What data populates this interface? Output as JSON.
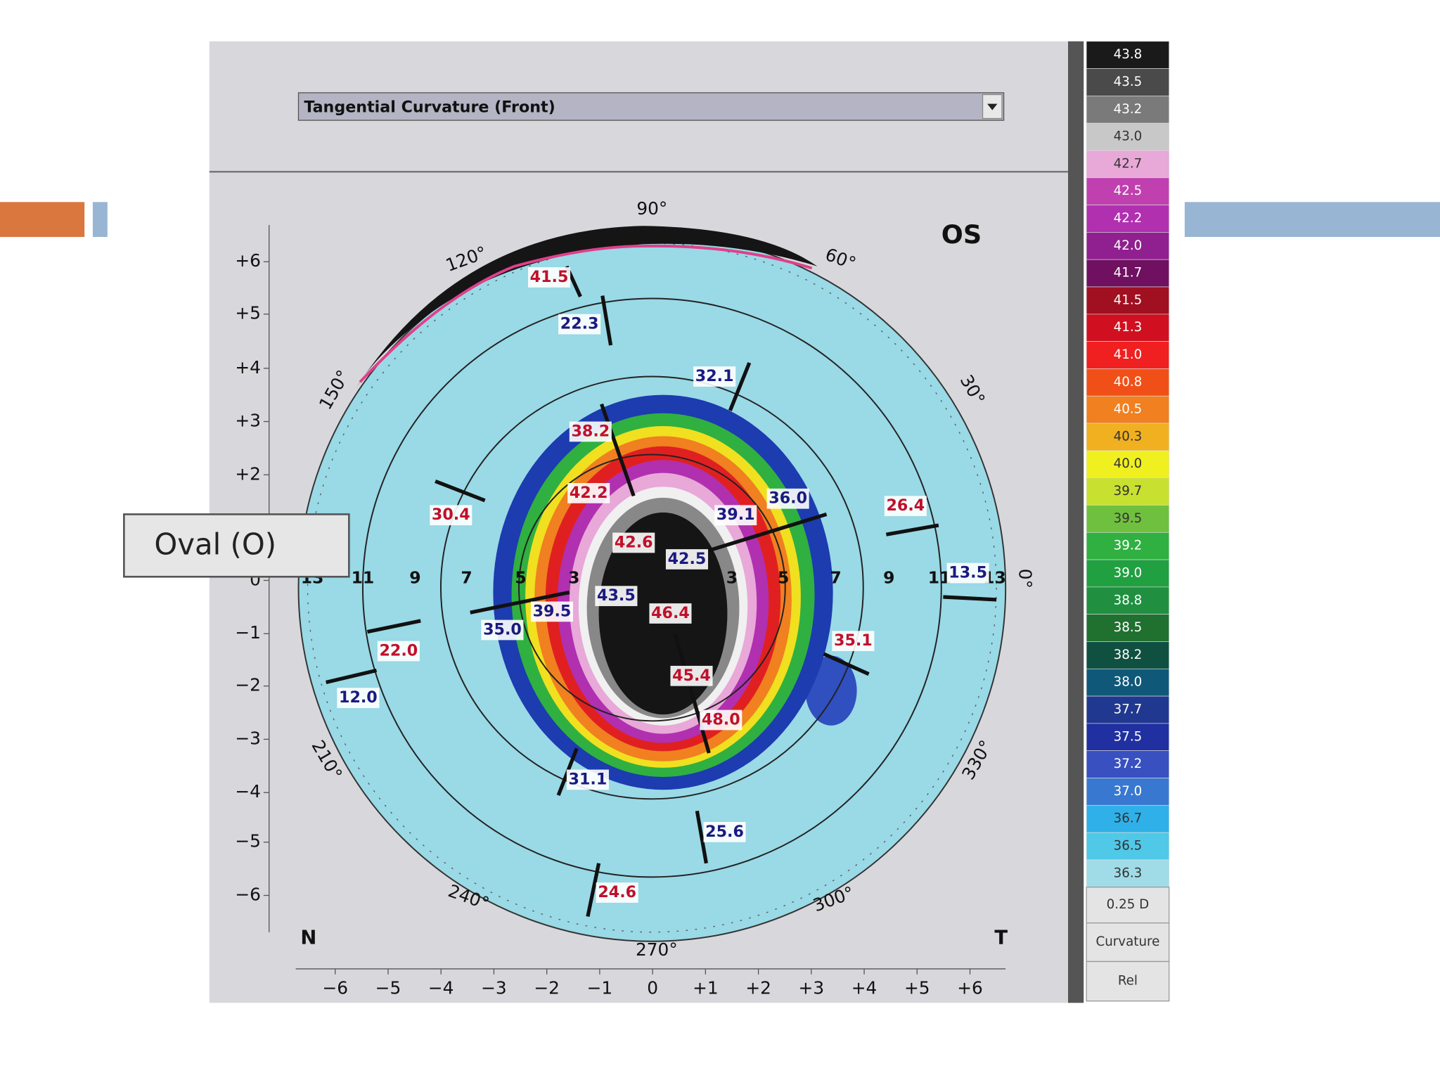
{
  "slide": {
    "callout": "Oval (O)"
  },
  "map": {
    "dropdown": "Tangential Curvature (Front)",
    "eye": "OS",
    "nasal": "N",
    "temporal": "T",
    "angles": [
      "90°",
      "60°",
      "30°",
      "0°",
      "330°",
      "300°",
      "270°",
      "240°",
      "210°",
      "150°",
      "120°"
    ],
    "y_ticks": [
      "+6",
      "+5",
      "+4",
      "+3",
      "+2",
      "0",
      "−1",
      "−2",
      "−3",
      "−4",
      "−5",
      "−6"
    ],
    "x_ticks": [
      "−6",
      "−5",
      "−4",
      "−3",
      "−2",
      "−1",
      "0",
      "+1",
      "+2",
      "+3",
      "+4",
      "+5",
      "+6"
    ],
    "ring_numbers": [
      "13",
      "11",
      "9",
      "7",
      "5",
      "3",
      "3",
      "5",
      "7",
      "9",
      "11",
      "13"
    ],
    "readings": [
      "41.5",
      "22.3",
      "32.1",
      "38.2",
      "42.2",
      "30.4",
      "36.0",
      "39.1",
      "26.4",
      "42.6",
      "42.5",
      "43.5",
      "39.5",
      "46.4",
      "35.0",
      "22.0",
      "35.1",
      "45.4",
      "12.0",
      "48.0",
      "31.1",
      "25.6",
      "24.6",
      "13.5"
    ]
  },
  "scale": {
    "steps": [
      "43.8",
      "43.5",
      "43.2",
      "43.0",
      "42.7",
      "42.5",
      "42.2",
      "42.0",
      "41.7",
      "41.5",
      "41.3",
      "41.0",
      "40.8",
      "40.5",
      "40.3",
      "40.0",
      "39.7",
      "39.5",
      "39.2",
      "39.0",
      "38.8",
      "38.5",
      "38.2",
      "38.0",
      "37.7",
      "37.5",
      "37.2",
      "37.0",
      "36.7",
      "36.5",
      "36.3"
    ],
    "step_size": "0.25 D",
    "mode": "Curvature",
    "reference": "Rel"
  }
}
